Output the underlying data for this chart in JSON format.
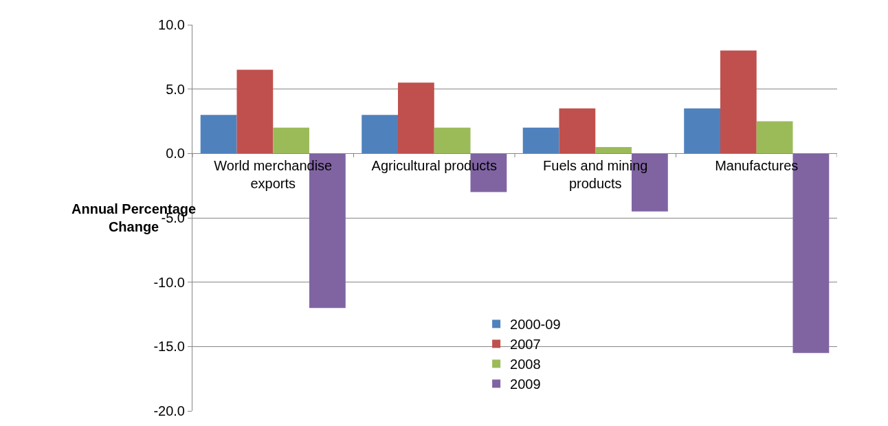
{
  "chart_data": {
    "type": "bar",
    "ylabel": "Annual Percentage Change",
    "categories": [
      "World merchandise exports",
      "Agricultural products",
      "Fuels and mining products",
      "Manufactures"
    ],
    "series": [
      {
        "name": "2000-09",
        "color": "#4f81bd",
        "values": [
          3.0,
          3.0,
          2.0,
          3.5
        ]
      },
      {
        "name": "2007",
        "color": "#c0504d",
        "values": [
          6.5,
          5.5,
          3.5,
          8.0
        ]
      },
      {
        "name": "2008",
        "color": "#9bbb59",
        "values": [
          2.0,
          2.0,
          0.5,
          2.5
        ]
      },
      {
        "name": "2009",
        "color": "#8064a2",
        "values": [
          -12.0,
          -3.0,
          -4.5,
          -15.5
        ]
      }
    ],
    "ylim": [
      -20,
      10
    ],
    "yticks": [
      {
        "value": -20,
        "label": "-20.0"
      },
      {
        "value": -15,
        "label": "-15.0"
      },
      {
        "value": -10,
        "label": "-10.0"
      },
      {
        "value": -5,
        "label": "-5.0"
      },
      {
        "value": 0,
        "label": "0.0"
      },
      {
        "value": 5,
        "label": "5.0"
      },
      {
        "value": 10,
        "label": "10.0"
      }
    ],
    "grid": "y",
    "legend": "bottom"
  }
}
